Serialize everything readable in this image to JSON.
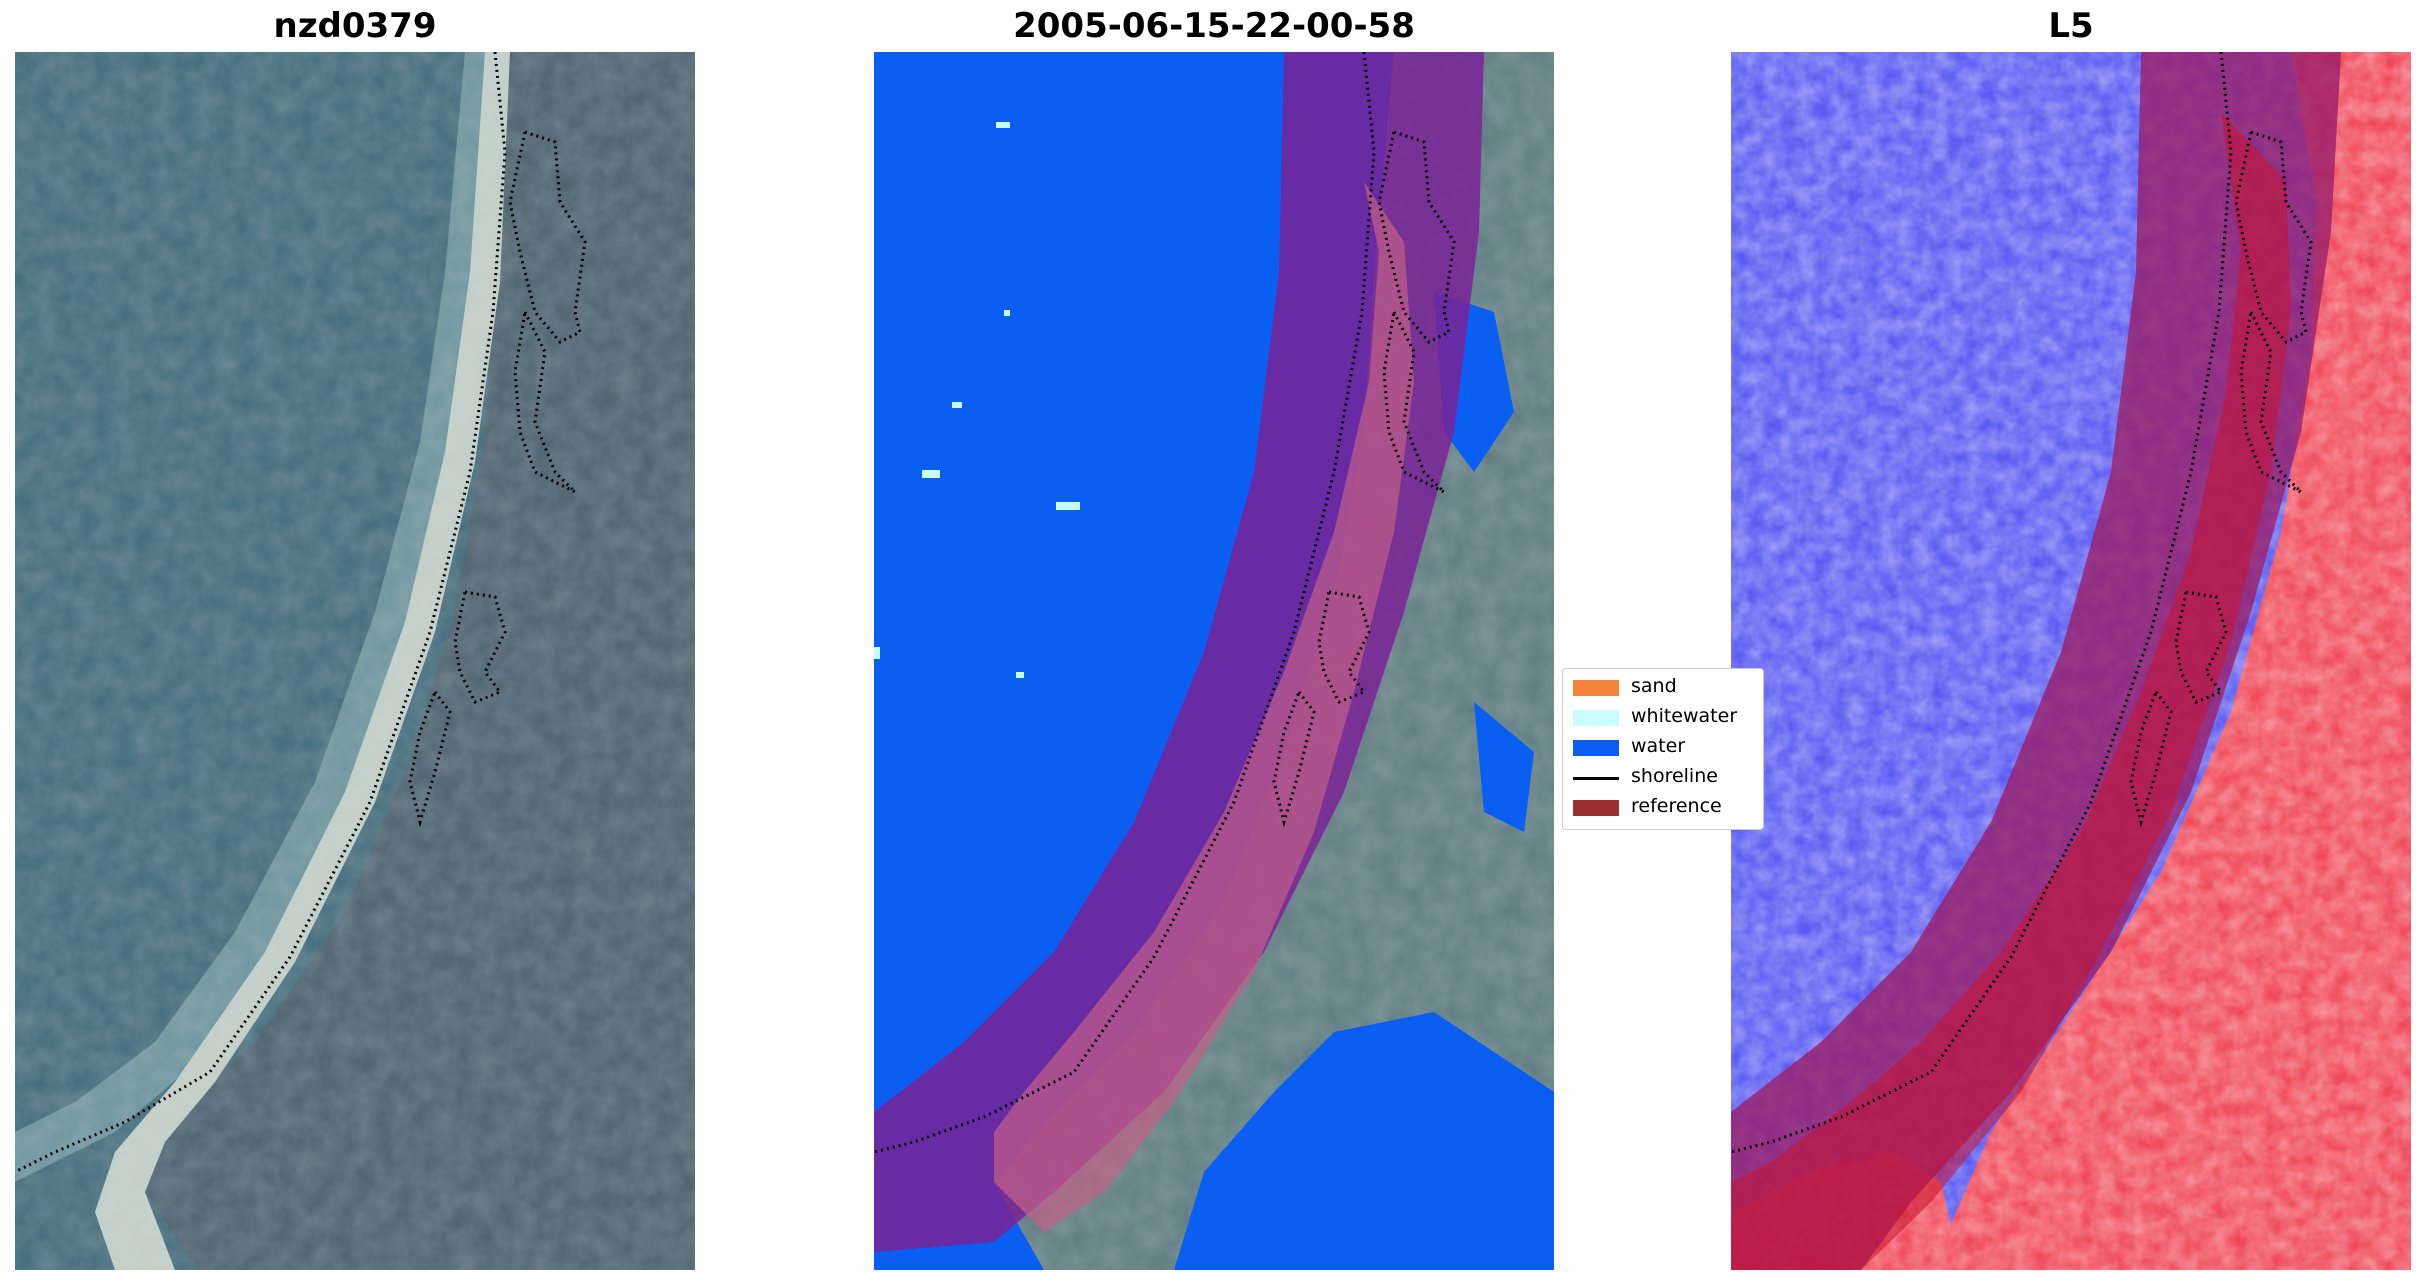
{
  "panels": [
    {
      "title": "nzd0379"
    },
    {
      "title": "2005-06-15-22-00-58"
    },
    {
      "title": "L5"
    }
  ],
  "legend": {
    "items": [
      {
        "label": "sand",
        "color": "#f5853a"
      },
      {
        "label": "whitewater",
        "color": "#c8fdfd"
      },
      {
        "label": "water",
        "color": "#0a5ff2"
      },
      {
        "label": "shoreline",
        "color": "#000000"
      },
      {
        "label": "reference",
        "color": "#9c2f2f"
      }
    ]
  },
  "colors": {
    "ocean_rgb": "#3f6779",
    "land_rgb": "#4c6170",
    "beach_rgb": "#c9d3cc",
    "surf_rgb": "#8fb9c0",
    "classified_water": "#0a5ff2",
    "reference_buffer": "#7a2296",
    "index_positive": "#e8112f",
    "index_negative": "#3c3cf0"
  }
}
